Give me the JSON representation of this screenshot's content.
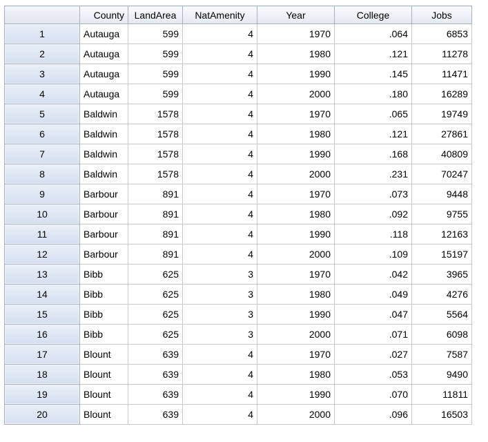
{
  "grid": {
    "columns": [
      "County",
      "LandArea",
      "NatAmenity",
      "Year",
      "College",
      "Jobs"
    ],
    "rows": [
      {
        "num": "1",
        "cells": [
          "Autauga",
          "599",
          "4",
          "1970",
          ".064",
          "6853"
        ]
      },
      {
        "num": "2",
        "cells": [
          "Autauga",
          "599",
          "4",
          "1980",
          ".121",
          "11278"
        ]
      },
      {
        "num": "3",
        "cells": [
          "Autauga",
          "599",
          "4",
          "1990",
          ".145",
          "11471"
        ]
      },
      {
        "num": "4",
        "cells": [
          "Autauga",
          "599",
          "4",
          "2000",
          ".180",
          "16289"
        ]
      },
      {
        "num": "5",
        "cells": [
          "Baldwin",
          "1578",
          "4",
          "1970",
          ".065",
          "19749"
        ]
      },
      {
        "num": "6",
        "cells": [
          "Baldwin",
          "1578",
          "4",
          "1980",
          ".121",
          "27861"
        ]
      },
      {
        "num": "7",
        "cells": [
          "Baldwin",
          "1578",
          "4",
          "1990",
          ".168",
          "40809"
        ]
      },
      {
        "num": "8",
        "cells": [
          "Baldwin",
          "1578",
          "4",
          "2000",
          ".231",
          "70247"
        ]
      },
      {
        "num": "9",
        "cells": [
          "Barbour",
          "891",
          "4",
          "1970",
          ".073",
          "9448"
        ]
      },
      {
        "num": "10",
        "cells": [
          "Barbour",
          "891",
          "4",
          "1980",
          ".092",
          "9755"
        ]
      },
      {
        "num": "11",
        "cells": [
          "Barbour",
          "891",
          "4",
          "1990",
          ".118",
          "12163"
        ]
      },
      {
        "num": "12",
        "cells": [
          "Barbour",
          "891",
          "4",
          "2000",
          ".109",
          "15197"
        ]
      },
      {
        "num": "13",
        "cells": [
          "Bibb",
          "625",
          "3",
          "1970",
          ".042",
          "3965"
        ]
      },
      {
        "num": "14",
        "cells": [
          "Bibb",
          "625",
          "3",
          "1980",
          ".049",
          "4276"
        ]
      },
      {
        "num": "15",
        "cells": [
          "Bibb",
          "625",
          "3",
          "1990",
          ".047",
          "5564"
        ]
      },
      {
        "num": "16",
        "cells": [
          "Bibb",
          "625",
          "3",
          "2000",
          ".071",
          "6098"
        ]
      },
      {
        "num": "17",
        "cells": [
          "Blount",
          "639",
          "4",
          "1970",
          ".027",
          "7587"
        ]
      },
      {
        "num": "18",
        "cells": [
          "Blount",
          "639",
          "4",
          "1980",
          ".053",
          "9490"
        ]
      },
      {
        "num": "19",
        "cells": [
          "Blount",
          "639",
          "4",
          "1990",
          ".070",
          "11811"
        ]
      },
      {
        "num": "20",
        "cells": [
          "Blount",
          "639",
          "4",
          "2000",
          ".096",
          "16503"
        ]
      }
    ]
  },
  "colors": {
    "header_bg": "#e3e8f1",
    "rowhead_bg": "#d3deef",
    "gridline": "#c9c9c9"
  }
}
